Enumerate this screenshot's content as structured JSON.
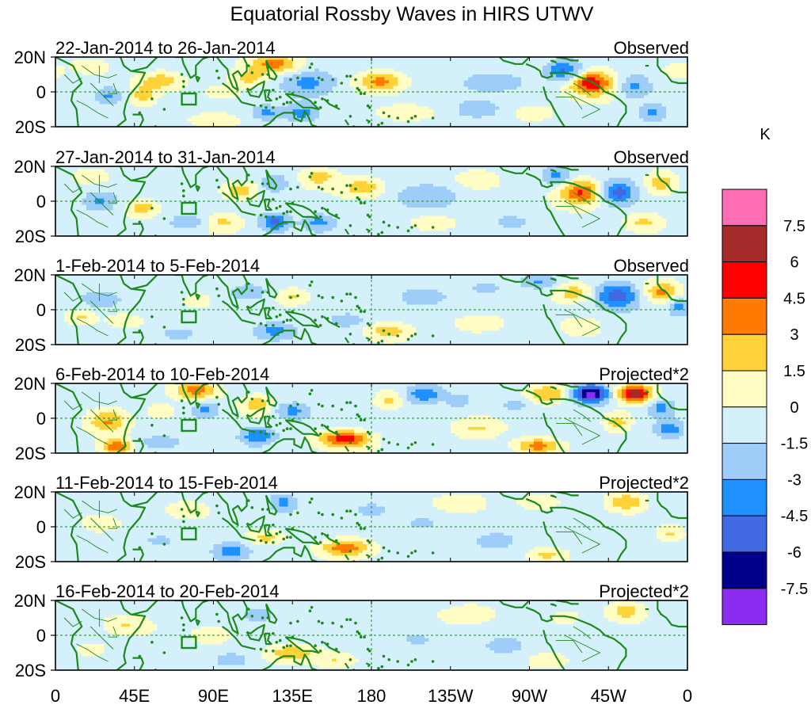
{
  "chart_data": {
    "type": "heatmap",
    "title": "Equatorial Rossby Waves in HIRS UTWV",
    "units": "K",
    "lat_ticks": [
      "20N",
      "0",
      "20S"
    ],
    "lon_ticks": [
      "0",
      "45E",
      "90E",
      "135E",
      "180",
      "135W",
      "90W",
      "45W",
      "0"
    ],
    "lon_range": [
      0,
      360
    ],
    "lat_range": [
      -20,
      20
    ],
    "colorbar": {
      "levels": [
        -7.5,
        -6,
        -4.5,
        -3,
        -1.5,
        0,
        1.5,
        3,
        4.5,
        6,
        7.5
      ],
      "labels": [
        "7.5",
        "6",
        "4.5",
        "3",
        "1.5",
        "0",
        "-1.5",
        "-3",
        "-4.5",
        "-6",
        "-7.5"
      ],
      "colors": [
        "#8b2cf0",
        "#00008b",
        "#4169e1",
        "#1e90ff",
        "#9fcdf9",
        "#d4f1fb",
        "#fffdc4",
        "#ffd23a",
        "#ff7a00",
        "#ff0000",
        "#a52a2a",
        "#ff6eb4"
      ]
    },
    "land_color": "#1c8a1c",
    "panels": [
      {
        "date_range": "22-Jan-2014 to 26-Jan-2014",
        "kind": "Observed",
        "features": [
          {
            "lon": 305,
            "lat": 5,
            "value": 6,
            "rlon": 12,
            "rlat": 7
          },
          {
            "lon": 290,
            "lat": 12,
            "value": -4.5,
            "rlon": 10,
            "rlat": 6
          },
          {
            "lon": 330,
            "lat": 3,
            "value": -3,
            "rlon": 9,
            "rlat": 7
          },
          {
            "lon": 340,
            "lat": -12,
            "value": -3,
            "rlon": 8,
            "rlat": 5
          },
          {
            "lon": 125,
            "lat": 16,
            "value": 4.5,
            "rlon": 14,
            "rlat": 5
          },
          {
            "lon": 110,
            "lat": 8,
            "value": 3,
            "rlon": 10,
            "rlat": 5
          },
          {
            "lon": 185,
            "lat": 6,
            "value": 4,
            "rlon": 12,
            "rlat": 5
          },
          {
            "lon": 145,
            "lat": 5,
            "value": -3,
            "rlon": 15,
            "rlat": 8
          },
          {
            "lon": 140,
            "lat": -12,
            "value": -3,
            "rlon": 10,
            "rlat": 5
          },
          {
            "lon": 120,
            "lat": -12,
            "value": -3,
            "rlon": 7,
            "rlat": 4
          },
          {
            "lon": 60,
            "lat": 6,
            "value": 3,
            "rlon": 12,
            "rlat": 5
          },
          {
            "lon": 50,
            "lat": -2,
            "value": 3,
            "rlon": 6,
            "rlat": 5
          },
          {
            "lon": 30,
            "lat": -2,
            "value": -3,
            "rlon": 8,
            "rlat": 5
          },
          {
            "lon": 20,
            "lat": 15,
            "value": 2,
            "rlon": 10,
            "rlat": 4
          },
          {
            "lon": 95,
            "lat": 0,
            "value": 2,
            "rlon": 10,
            "rlat": 4
          },
          {
            "lon": 90,
            "lat": -16,
            "value": 2,
            "rlon": 12,
            "rlat": 4
          },
          {
            "lon": 200,
            "lat": -12,
            "value": 2,
            "rlon": 14,
            "rlat": 4
          },
          {
            "lon": 250,
            "lat": 6,
            "value": -1.5,
            "rlon": 20,
            "rlat": 6
          },
          {
            "lon": 240,
            "lat": -10,
            "value": -2,
            "rlon": 12,
            "rlat": 5
          },
          {
            "lon": 355,
            "lat": 12,
            "value": 2,
            "rlon": 8,
            "rlat": 4
          },
          {
            "lon": 272,
            "lat": -12,
            "value": 2,
            "rlon": 10,
            "rlat": 4
          }
        ]
      },
      {
        "date_range": "27-Jan-2014 to 31-Jan-2014",
        "kind": "Observed",
        "features": [
          {
            "lon": 300,
            "lat": 5,
            "value": 5,
            "rlon": 12,
            "rlat": 7
          },
          {
            "lon": 320,
            "lat": 5,
            "value": -5,
            "rlon": 10,
            "rlat": 7
          },
          {
            "lon": 345,
            "lat": 10,
            "value": 3,
            "rlon": 9,
            "rlat": 6
          },
          {
            "lon": 285,
            "lat": 14,
            "value": -3,
            "rlon": 8,
            "rlat": 5
          },
          {
            "lon": 150,
            "lat": 14,
            "value": 3,
            "rlon": 10,
            "rlat": 5
          },
          {
            "lon": 175,
            "lat": 8,
            "value": 3,
            "rlon": 12,
            "rlat": 5
          },
          {
            "lon": 105,
            "lat": 6,
            "value": 3,
            "rlon": 10,
            "rlat": 5
          },
          {
            "lon": 125,
            "lat": 10,
            "value": -2.5,
            "rlon": 8,
            "rlat": 5
          },
          {
            "lon": 125,
            "lat": -12,
            "value": -4.5,
            "rlon": 8,
            "rlat": 5
          },
          {
            "lon": 150,
            "lat": -12,
            "value": -3,
            "rlon": 10,
            "rlat": 5
          },
          {
            "lon": 25,
            "lat": 0,
            "value": -3,
            "rlon": 10,
            "rlat": 6
          },
          {
            "lon": 50,
            "lat": -4,
            "value": 3,
            "rlon": 8,
            "rlat": 5
          },
          {
            "lon": 75,
            "lat": -12,
            "value": -2,
            "rlon": 10,
            "rlat": 4
          },
          {
            "lon": 95,
            "lat": -12,
            "value": 2.5,
            "rlon": 10,
            "rlat": 5
          },
          {
            "lon": 210,
            "lat": 3,
            "value": -1.5,
            "rlon": 20,
            "rlat": 8
          },
          {
            "lon": 240,
            "lat": 12,
            "value": 2,
            "rlon": 12,
            "rlat": 5
          },
          {
            "lon": 215,
            "lat": -12,
            "value": 2,
            "rlon": 12,
            "rlat": 4
          },
          {
            "lon": 260,
            "lat": -12,
            "value": -1.5,
            "rlon": 12,
            "rlat": 5
          },
          {
            "lon": 335,
            "lat": -12,
            "value": 2.5,
            "rlon": 10,
            "rlat": 5
          },
          {
            "lon": 20,
            "lat": 15,
            "value": 2,
            "rlon": 10,
            "rlat": 4
          }
        ]
      },
      {
        "date_range": "1-Feb-2014 to 5-Feb-2014",
        "kind": "Observed",
        "features": [
          {
            "lon": 320,
            "lat": 8,
            "value": -5,
            "rlon": 12,
            "rlat": 7
          },
          {
            "lon": 345,
            "lat": 10,
            "value": 4,
            "rlon": 10,
            "rlat": 6
          },
          {
            "lon": 355,
            "lat": 2,
            "value": -3,
            "rlon": 6,
            "rlat": 5
          },
          {
            "lon": 295,
            "lat": 10,
            "value": 3,
            "rlon": 10,
            "rlat": 5
          },
          {
            "lon": 275,
            "lat": 16,
            "value": -2.5,
            "rlon": 10,
            "rlat": 4
          },
          {
            "lon": 300,
            "lat": -10,
            "value": 2,
            "rlon": 10,
            "rlat": 5
          },
          {
            "lon": 125,
            "lat": -12,
            "value": -3,
            "rlon": 12,
            "rlat": 5
          },
          {
            "lon": 190,
            "lat": -12,
            "value": 3,
            "rlon": 12,
            "rlat": 5
          },
          {
            "lon": 165,
            "lat": -6,
            "value": -2,
            "rlon": 10,
            "rlat": 4
          },
          {
            "lon": 110,
            "lat": 10,
            "value": -2,
            "rlon": 12,
            "rlat": 5
          },
          {
            "lon": 135,
            "lat": 8,
            "value": 2,
            "rlon": 8,
            "rlat": 4
          },
          {
            "lon": 80,
            "lat": 5,
            "value": 2,
            "rlon": 8,
            "rlat": 4
          },
          {
            "lon": 25,
            "lat": 6,
            "value": -2,
            "rlon": 12,
            "rlat": 5
          },
          {
            "lon": 40,
            "lat": -6,
            "value": 2,
            "rlon": 10,
            "rlat": 4
          },
          {
            "lon": 15,
            "lat": -4,
            "value": 2,
            "rlon": 8,
            "rlat": 4
          },
          {
            "lon": 70,
            "lat": -14,
            "value": -1.5,
            "rlon": 12,
            "rlat": 4
          },
          {
            "lon": 210,
            "lat": 8,
            "value": -1.5,
            "rlon": 15,
            "rlat": 6
          },
          {
            "lon": 240,
            "lat": -8,
            "value": 2,
            "rlon": 12,
            "rlat": 4
          },
          {
            "lon": 245,
            "lat": 12,
            "value": -1.5,
            "rlon": 10,
            "rlat": 4
          }
        ]
      },
      {
        "date_range": "6-Feb-2014 to 10-Feb-2014",
        "kind": "Projected*2",
        "features": [
          {
            "lon": 305,
            "lat": 14,
            "value": -8,
            "rlon": 10,
            "rlat": 5
          },
          {
            "lon": 330,
            "lat": 14,
            "value": 7.6,
            "rlon": 10,
            "rlat": 5
          },
          {
            "lon": 345,
            "lat": 6,
            "value": -3,
            "rlon": 8,
            "rlat": 5
          },
          {
            "lon": 350,
            "lat": -6,
            "value": -3.5,
            "rlon": 8,
            "rlat": 5
          },
          {
            "lon": 320,
            "lat": -2,
            "value": 3,
            "rlon": 8,
            "rlat": 6
          },
          {
            "lon": 280,
            "lat": 14,
            "value": 3.5,
            "rlon": 12,
            "rlat": 5
          },
          {
            "lon": 262,
            "lat": 8,
            "value": -2,
            "rlon": 8,
            "rlat": 4
          },
          {
            "lon": 165,
            "lat": -12,
            "value": 6,
            "rlon": 14,
            "rlat": 5
          },
          {
            "lon": 210,
            "lat": 14,
            "value": -4,
            "rlon": 10,
            "rlat": 5
          },
          {
            "lon": 190,
            "lat": 10,
            "value": 2.5,
            "rlon": 8,
            "rlat": 5
          },
          {
            "lon": 115,
            "lat": -10,
            "value": -4,
            "rlon": 10,
            "rlat": 5
          },
          {
            "lon": 135,
            "lat": 4,
            "value": -3,
            "rlon": 10,
            "rlat": 5
          },
          {
            "lon": 115,
            "lat": 8,
            "value": 3,
            "rlon": 8,
            "rlat": 5
          },
          {
            "lon": 80,
            "lat": 16,
            "value": 4.5,
            "rlon": 12,
            "rlat": 5
          },
          {
            "lon": 85,
            "lat": 5,
            "value": -3,
            "rlon": 8,
            "rlat": 5
          },
          {
            "lon": 30,
            "lat": -2,
            "value": 4,
            "rlon": 12,
            "rlat": 7
          },
          {
            "lon": 35,
            "lat": -16,
            "value": 5,
            "rlon": 8,
            "rlat": 4
          },
          {
            "lon": 60,
            "lat": 4,
            "value": 2,
            "rlon": 8,
            "rlat": 4
          },
          {
            "lon": 240,
            "lat": -6,
            "value": 2,
            "rlon": 12,
            "rlat": 5
          },
          {
            "lon": 275,
            "lat": -16,
            "value": 4.5,
            "rlon": 12,
            "rlat": 4
          },
          {
            "lon": 60,
            "lat": -14,
            "value": -2,
            "rlon": 12,
            "rlat": 4
          },
          {
            "lon": 230,
            "lat": 10,
            "value": -2,
            "rlon": 8,
            "rlat": 4
          }
        ]
      },
      {
        "date_range": "11-Feb-2014 to 15-Feb-2014",
        "kind": "Projected*2",
        "features": [
          {
            "lon": 165,
            "lat": -12,
            "value": 4.5,
            "rlon": 14,
            "rlat": 5
          },
          {
            "lon": 120,
            "lat": -6,
            "value": 2.5,
            "rlon": 10,
            "rlat": 4
          },
          {
            "lon": 100,
            "lat": -14,
            "value": -3.5,
            "rlon": 10,
            "rlat": 5
          },
          {
            "lon": 130,
            "lat": 14,
            "value": -3,
            "rlon": 8,
            "rlat": 5
          },
          {
            "lon": 325,
            "lat": 14,
            "value": 3.5,
            "rlon": 10,
            "rlat": 5
          },
          {
            "lon": 230,
            "lat": 14,
            "value": 2,
            "rlon": 14,
            "rlat": 5
          },
          {
            "lon": 275,
            "lat": 14,
            "value": 2,
            "rlon": 10,
            "rlat": 4
          },
          {
            "lon": 25,
            "lat": 2,
            "value": 2,
            "rlon": 12,
            "rlat": 5
          },
          {
            "lon": 75,
            "lat": 10,
            "value": 2,
            "rlon": 10,
            "rlat": 4
          },
          {
            "lon": 280,
            "lat": -16,
            "value": 2.5,
            "rlon": 10,
            "rlat": 4
          },
          {
            "lon": 250,
            "lat": -8,
            "value": -2,
            "rlon": 12,
            "rlat": 5
          },
          {
            "lon": 60,
            "lat": -8,
            "value": -1.5,
            "rlon": 10,
            "rlat": 4
          },
          {
            "lon": 210,
            "lat": 2,
            "value": -1.5,
            "rlon": 15,
            "rlat": 6
          },
          {
            "lon": 350,
            "lat": -4,
            "value": 2,
            "rlon": 6,
            "rlat": 4
          },
          {
            "lon": 180,
            "lat": 10,
            "value": -1.5,
            "rlon": 10,
            "rlat": 4
          }
        ]
      },
      {
        "date_range": "16-Feb-2014 to 20-Feb-2014",
        "kind": "Projected*2",
        "features": [
          {
            "lon": 135,
            "lat": -10,
            "value": 3.5,
            "rlon": 14,
            "rlat": 5
          },
          {
            "lon": 160,
            "lat": -14,
            "value": 2,
            "rlon": 10,
            "rlat": 4
          },
          {
            "lon": 325,
            "lat": 14,
            "value": 3,
            "rlon": 10,
            "rlat": 5
          },
          {
            "lon": 235,
            "lat": 12,
            "value": 2,
            "rlon": 14,
            "rlat": 5
          },
          {
            "lon": 40,
            "lat": 6,
            "value": 2,
            "rlon": 12,
            "rlat": 5
          },
          {
            "lon": 90,
            "lat": 0,
            "value": 1.8,
            "rlon": 10,
            "rlat": 4
          },
          {
            "lon": 100,
            "lat": -14,
            "value": -2,
            "rlon": 10,
            "rlat": 4
          },
          {
            "lon": 115,
            "lat": 12,
            "value": -1.8,
            "rlon": 10,
            "rlat": 4
          },
          {
            "lon": 280,
            "lat": -14,
            "value": 2,
            "rlon": 10,
            "rlat": 4
          },
          {
            "lon": 255,
            "lat": -6,
            "value": -1.5,
            "rlon": 12,
            "rlat": 5
          },
          {
            "lon": 205,
            "lat": -2,
            "value": -1.5,
            "rlon": 16,
            "rlat": 6
          },
          {
            "lon": 20,
            "lat": -8,
            "value": 1.6,
            "rlon": 8,
            "rlat": 4
          },
          {
            "lon": 290,
            "lat": 10,
            "value": 1.6,
            "rlon": 8,
            "rlat": 4
          }
        ]
      }
    ]
  }
}
